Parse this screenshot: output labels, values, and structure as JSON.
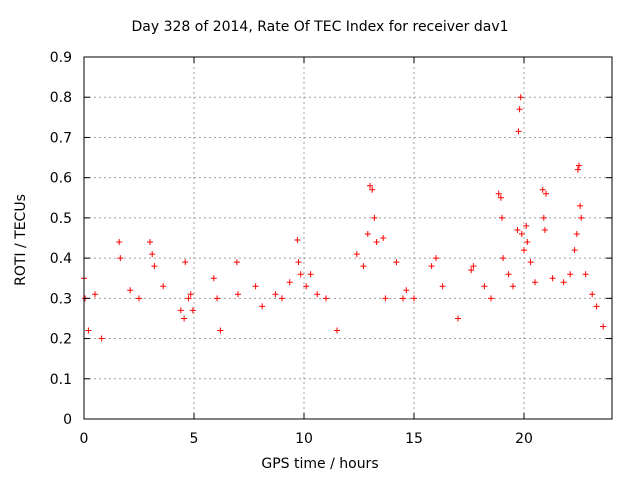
{
  "chart_data": {
    "type": "scatter",
    "title": "Day 328 of 2014, Rate Of TEC Index for receiver dav1",
    "xlabel": "GPS time / hours",
    "ylabel": "ROTI / TECUs",
    "xlim": [
      0,
      24
    ],
    "ylim": [
      0,
      0.9
    ],
    "xticks": [
      "0",
      "5",
      "10",
      "15",
      "20"
    ],
    "yticks": [
      "0",
      "0.1",
      "0.2",
      "0.3",
      "0.4",
      "0.5",
      "0.6",
      "0.7",
      "0.8",
      "0.9"
    ],
    "grid": true,
    "marker": "+",
    "color": "#ff0000",
    "data_gap_hours": [
      5.05,
      5.75
    ],
    "series": [
      {
        "x": [
          0.0,
          0.05,
          0.2,
          0.5,
          0.8,
          1.6,
          1.65,
          2.1,
          2.5,
          3.0,
          3.1,
          3.2,
          3.6,
          4.4,
          4.55,
          4.6,
          4.75,
          4.85,
          4.95,
          5.9,
          6.05,
          6.2,
          6.95,
          7.0,
          7.8,
          8.1,
          8.7,
          9.0,
          9.35,
          9.7,
          9.75,
          9.85,
          10.1,
          10.3,
          10.6,
          11.0,
          11.5,
          12.4,
          12.7,
          12.9,
          13.0,
          13.1,
          13.2,
          13.3,
          13.6,
          13.7,
          14.2,
          14.5,
          14.65,
          15.0,
          15.8,
          16.0,
          16.3,
          17.0,
          17.6,
          17.7,
          18.2,
          18.5,
          18.85,
          18.95,
          19.0,
          19.05,
          19.3,
          19.5,
          19.7,
          19.75,
          19.8,
          19.85,
          19.9,
          20.0,
          20.1,
          20.15,
          20.3,
          20.5,
          20.85,
          20.9,
          20.95,
          21.0,
          21.3,
          21.8,
          22.1,
          22.3,
          22.4,
          22.45,
          22.5,
          22.55,
          22.6,
          22.8,
          23.1,
          23.3,
          23.6
        ],
        "y": [
          0.35,
          0.3,
          0.22,
          0.31,
          0.2,
          0.44,
          0.4,
          0.32,
          0.3,
          0.44,
          0.41,
          0.38,
          0.33,
          0.27,
          0.25,
          0.39,
          0.3,
          0.31,
          0.27,
          0.35,
          0.3,
          0.22,
          0.39,
          0.31,
          0.33,
          0.28,
          0.31,
          0.3,
          0.34,
          0.445,
          0.39,
          0.36,
          0.33,
          0.36,
          0.31,
          0.3,
          0.22,
          0.41,
          0.38,
          0.46,
          0.58,
          0.57,
          0.5,
          0.44,
          0.45,
          0.3,
          0.39,
          0.3,
          0.32,
          0.3,
          0.38,
          0.4,
          0.33,
          0.25,
          0.37,
          0.38,
          0.33,
          0.3,
          0.56,
          0.55,
          0.5,
          0.4,
          0.36,
          0.33,
          0.47,
          0.715,
          0.77,
          0.8,
          0.46,
          0.42,
          0.48,
          0.44,
          0.39,
          0.34,
          0.57,
          0.5,
          0.47,
          0.56,
          0.35,
          0.34,
          0.36,
          0.42,
          0.46,
          0.62,
          0.63,
          0.53,
          0.5,
          0.36,
          0.31,
          0.28,
          0.23
        ]
      }
    ]
  }
}
